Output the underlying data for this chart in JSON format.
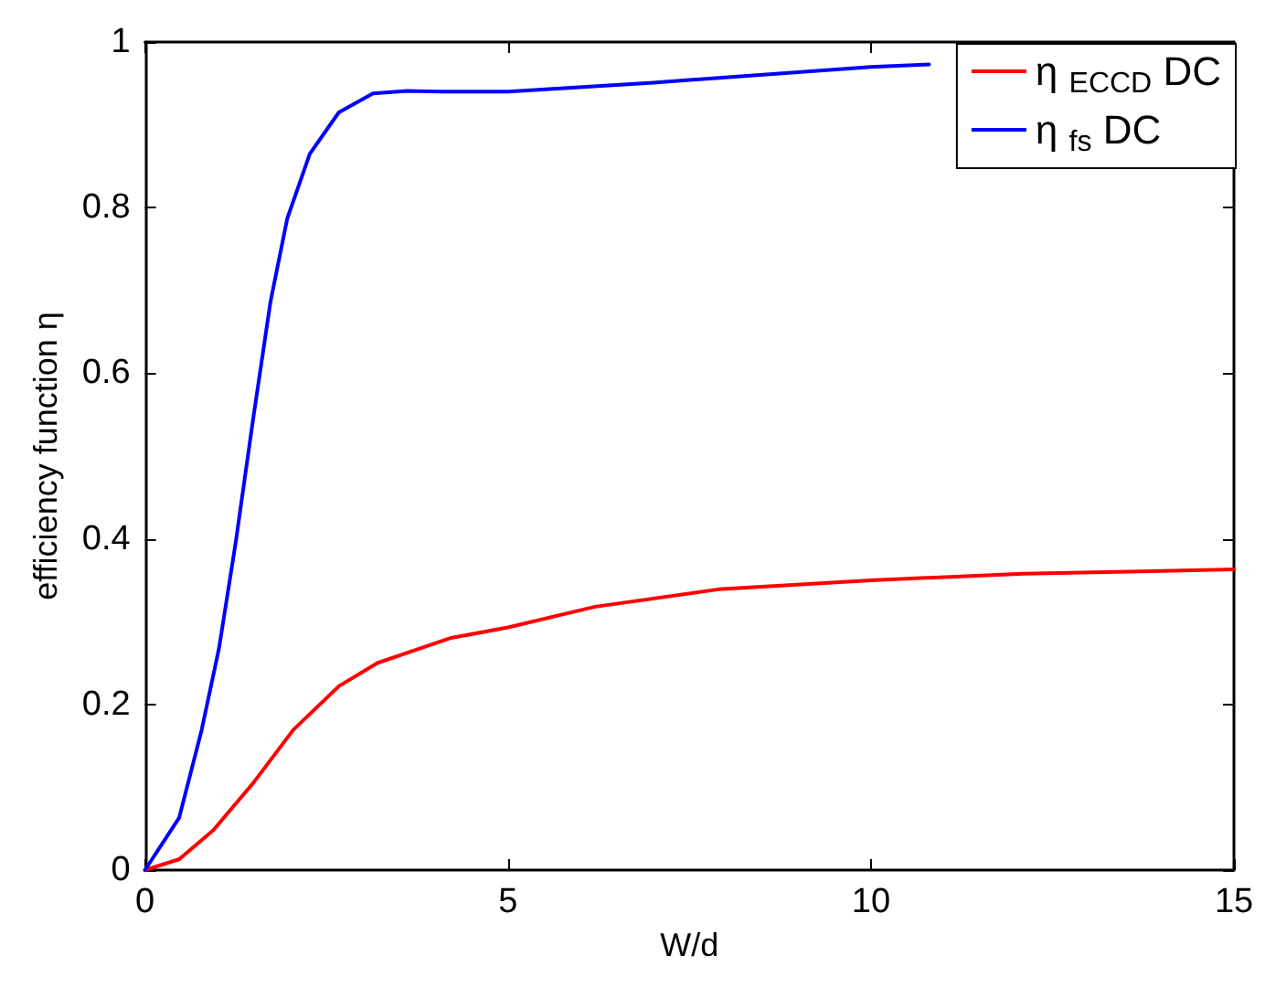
{
  "chart_data": {
    "type": "line",
    "xlabel": "W/d",
    "ylabel": "efficiency function η",
    "xlim": [
      0,
      15
    ],
    "xticks": [
      0,
      5,
      10,
      15
    ],
    "ylim": [
      0,
      1
    ],
    "yticks": [
      0,
      0.2,
      0.4,
      0.6,
      0.8,
      1
    ],
    "grid": false,
    "legend": "top right",
    "marker": "none",
    "line_style": "solid",
    "series": [
      {
        "name": "η $_{ECCD}$ DC",
        "color": "#ff0000",
        "x": [
          0,
          0.47,
          0.94,
          1.49,
          2.04,
          2.67,
          3.2,
          3.7,
          4.2,
          5,
          6.2,
          7.9,
          10,
          12.1,
          15
        ],
        "values": [
          0,
          0.013,
          0.048,
          0.105,
          0.169,
          0.222,
          0.25,
          0.265,
          0.28,
          0.293,
          0.318,
          0.339,
          0.35,
          0.358,
          0.363
        ]
      },
      {
        "name": "η $_{fs}$ DC",
        "color": "#0000ff",
        "x": [
          0,
          0.47,
          0.78,
          1.02,
          1.25,
          1.49,
          1.73,
          1.96,
          2.27,
          2.67,
          3.14,
          3.61,
          4.08,
          5,
          7,
          10,
          10.8
        ],
        "values": [
          0,
          0.063,
          0.169,
          0.268,
          0.396,
          0.545,
          0.687,
          0.787,
          0.865,
          0.915,
          0.938,
          0.941,
          0.94,
          0.94,
          0.951,
          0.97,
          0.973
        ]
      }
    ]
  }
}
